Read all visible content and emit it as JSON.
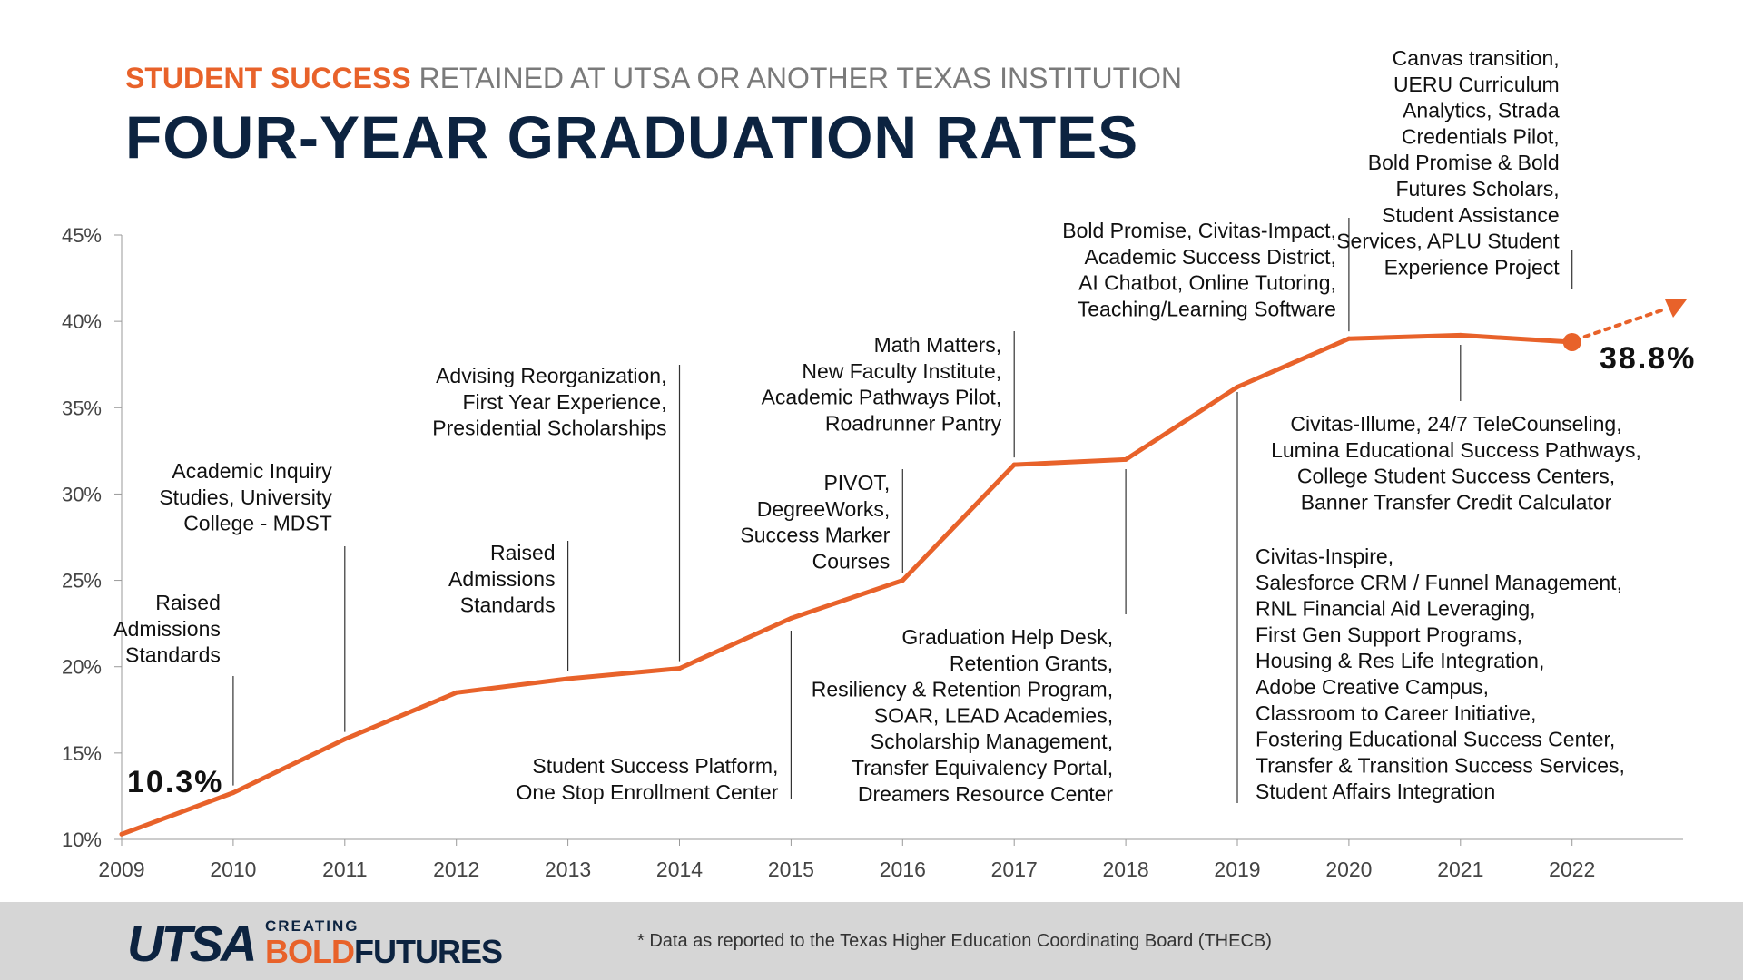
{
  "header": {
    "super_accent": "STUDENT SUCCESS",
    "super_rest": "RETAINED AT UTSA OR ANOTHER TEXAS INSTITUTION",
    "title": "FOUR-YEAR GRADUATION RATES"
  },
  "chart_data": {
    "type": "line",
    "x": [
      2009,
      2010,
      2011,
      2012,
      2013,
      2014,
      2015,
      2016,
      2017,
      2018,
      2019,
      2020,
      2021,
      2022
    ],
    "series": [
      {
        "values": [
          10.3,
          12.7,
          15.8,
          18.5,
          19.3,
          19.9,
          22.8,
          25.0,
          31.7,
          32.0,
          36.2,
          39.0,
          39.2,
          38.8
        ]
      }
    ],
    "ylim": [
      10,
      45
    ],
    "y_ticks": [
      "10%",
      "15%",
      "20%",
      "25%",
      "30%",
      "35%",
      "40%",
      "45%"
    ],
    "x_ticks": [
      "2009",
      "2010",
      "2011",
      "2012",
      "2013",
      "2014",
      "2015",
      "2016",
      "2017",
      "2018",
      "2019",
      "2020",
      "2021",
      "2022"
    ],
    "value_labels": {
      "first": "10.3%",
      "last": "38.8%"
    },
    "trend": "projected increase after 2022",
    "colors": {
      "line": "#E8622A",
      "axis": "#999999",
      "text": "#111111",
      "navy": "#0C2340"
    },
    "annotations": [
      {
        "year": 2010,
        "side": "above",
        "text": [
          "Raised",
          "Admissions",
          "Standards"
        ]
      },
      {
        "year": 2011,
        "side": "above",
        "text": [
          "Academic Inquiry",
          "Studies, University",
          "College - MDST"
        ]
      },
      {
        "year": 2013,
        "side": "above",
        "text": [
          "Raised",
          "Admissions",
          "Standards"
        ]
      },
      {
        "year": 2014,
        "side": "above",
        "text": [
          "Advising Reorganization,",
          "First Year Experience,",
          "Presidential Scholarships"
        ]
      },
      {
        "year": 2015,
        "side": "below",
        "text": [
          "Student Success Platform,",
          "One Stop Enrollment Center"
        ]
      },
      {
        "year": 2016,
        "side": "above",
        "text": [
          "PIVOT,",
          "DegreeWorks,",
          "Success Marker",
          "Courses"
        ]
      },
      {
        "year": 2017,
        "side": "above",
        "text": [
          "Math Matters,",
          "New Faculty Institute,",
          "Academic Pathways Pilot,",
          "Roadrunner Pantry"
        ]
      },
      {
        "year": 2018,
        "side": "below",
        "text": [
          "Graduation Help Desk,",
          "Retention Grants,",
          "Resiliency & Retention Program,",
          "SOAR, LEAD Academies,",
          "Scholarship Management,",
          "Transfer Equivalency Portal,",
          "Dreamers Resource Center"
        ]
      },
      {
        "year": 2019,
        "side": "below",
        "text": [
          "Civitas-Inspire,",
          "Salesforce CRM / Funnel Management,",
          "RNL Financial Aid Leveraging,",
          "First Gen Support Programs,",
          "Housing & Res Life Integration,",
          "Adobe Creative Campus,",
          "Classroom to Career Initiative,",
          "Fostering Educational Success Center,",
          "Transfer & Transition Success Services,",
          "Student Affairs Integration"
        ]
      },
      {
        "year": 2020,
        "side": "above",
        "text": [
          "Bold Promise, Civitas-Impact,",
          "Academic Success District,",
          "AI Chatbot, Online Tutoring,",
          "Teaching/Learning Software"
        ]
      },
      {
        "year": 2021,
        "side": "below",
        "text": [
          "Civitas-Illume, 24/7 TeleCounseling,",
          "Lumina Educational Success Pathways,",
          "College Student Success Centers,",
          "Banner Transfer Credit Calculator"
        ]
      },
      {
        "year": 2022,
        "side": "above",
        "text": [
          "Canvas transition,",
          "UERU Curriculum",
          "Analytics, Strada",
          "Credentials Pilot,",
          "Bold Promise & Bold",
          "Futures Scholars,",
          "Student Assistance",
          "Services, APLU Student",
          "Experience Project"
        ]
      }
    ]
  },
  "footer": {
    "logo_main": "UTSA",
    "logo_creating": "CREATING",
    "logo_bold": "BOLD",
    "logo_futures": "FUTURES",
    "footnote": "* Data as reported to the Texas Higher Education Coordinating Board (THECB)"
  }
}
